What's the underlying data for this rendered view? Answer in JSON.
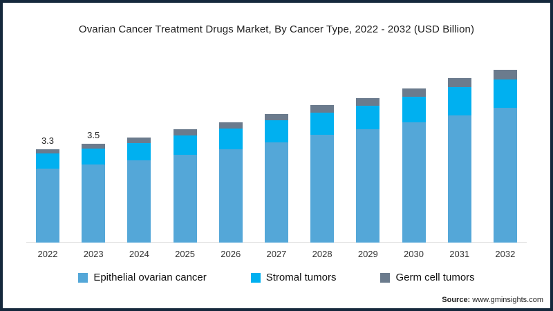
{
  "title": "Ovarian Cancer Treatment Drugs Market, By Cancer Type, 2022 - 2032 (USD Billion)",
  "source": {
    "label": "Source:",
    "url": "www.gminsights.com"
  },
  "frame": {
    "border_color": "#15283c",
    "background": "#ffffff"
  },
  "chart_data": {
    "type": "bar",
    "stacked": true,
    "title": "Ovarian Cancer Treatment Drugs Market, By Cancer Type, 2022 - 2032 (USD Billion)",
    "xlabel": "",
    "ylabel": "USD Billion",
    "y_axis_visible": false,
    "grid": false,
    "legend_position": "bottom",
    "ylim": [
      0,
      6.5
    ],
    "categories": [
      "2022",
      "2023",
      "2024",
      "2025",
      "2026",
      "2027",
      "2028",
      "2029",
      "2030",
      "2031",
      "2032"
    ],
    "series": [
      {
        "name": "Epithelial ovarian cancer",
        "color": "#54a7d8",
        "values": [
          2.6,
          2.75,
          2.9,
          3.1,
          3.3,
          3.55,
          3.8,
          4.0,
          4.25,
          4.5,
          4.75
        ]
      },
      {
        "name": "Stromal tumors",
        "color": "#00b0f0",
        "values": [
          0.55,
          0.58,
          0.62,
          0.68,
          0.73,
          0.77,
          0.8,
          0.83,
          0.9,
          0.98,
          1.02
        ]
      },
      {
        "name": "Germ cell tumors",
        "color": "#6b7b8d",
        "values": [
          0.15,
          0.17,
          0.18,
          0.22,
          0.22,
          0.23,
          0.25,
          0.27,
          0.3,
          0.32,
          0.33
        ]
      }
    ],
    "totals": [
      3.3,
      3.5,
      3.7,
      4.0,
      4.25,
      4.55,
      4.85,
      5.1,
      5.45,
      5.8,
      6.1
    ],
    "bar_labels": [
      "3.3",
      "3.5",
      "",
      "",
      "",
      "",
      "",
      "",
      "",
      "",
      ""
    ]
  }
}
